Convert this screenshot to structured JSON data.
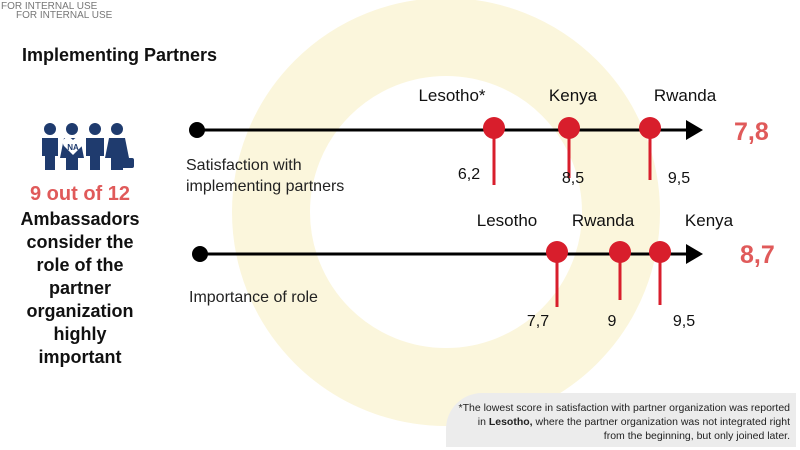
{
  "watermark": [
    "FOR INTERNAL USE",
    "FOR INTERNAL USE"
  ],
  "title": "Implementing Partners",
  "icon": {
    "name": "people-group-icon",
    "badge": "NA"
  },
  "stat": {
    "count": "9 out of 12",
    "description_lines": [
      "Ambassadors",
      "consider the",
      "role of the",
      "partner",
      "organization",
      "highly",
      "important"
    ]
  },
  "rows": [
    {
      "label_lines": [
        "Satisfaction with",
        "implementing partners"
      ],
      "average": "7,8",
      "markers": [
        {
          "country": "Lesotho*",
          "value": "6,2"
        },
        {
          "country": "Kenya",
          "value": "8,5"
        },
        {
          "country": "Rwanda",
          "value": "9,5"
        }
      ]
    },
    {
      "label_lines": [
        "Importance of role"
      ],
      "average": "8,7",
      "markers": [
        {
          "country": "Lesotho",
          "value": "7,7"
        },
        {
          "country": "Rwanda",
          "value": "9"
        },
        {
          "country": "Kenya",
          "value": "9,5"
        }
      ]
    }
  ],
  "footnote": {
    "part1": "*The lowest score in satisfaction with partner organization was reported in ",
    "bold": "Lesotho,",
    "part2": " where the partner organization was not integrated right from the beginning, but only joined later."
  },
  "colors": {
    "accent": "#e05a5a",
    "marker": "#d81e2c",
    "icon": "#1f3b6e",
    "ring": "#fbf6dc"
  }
}
